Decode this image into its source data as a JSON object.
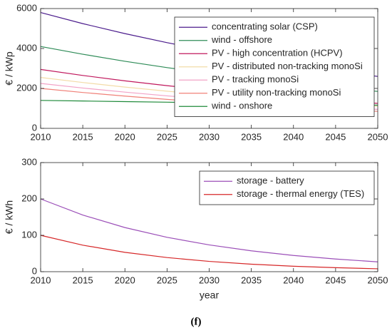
{
  "chart_data": [
    {
      "type": "line",
      "y_label": "€ / kWp",
      "x": [
        2010,
        2015,
        2020,
        2025,
        2030,
        2035,
        2040,
        2045,
        2050
      ],
      "xlim": [
        2010,
        2050
      ],
      "xticks": [
        2010,
        2015,
        2020,
        2025,
        2030,
        2035,
        2040,
        2045,
        2050
      ],
      "ylim": [
        0,
        6000
      ],
      "yticks": [
        0,
        2000,
        4000,
        6000
      ],
      "legend": "upper right",
      "series": [
        {
          "name": "concentrating solar (CSP)",
          "color": "#4b1c8c",
          "values": [
            5800,
            5246,
            4745,
            4292,
            3882,
            3511,
            3176,
            2873,
            2600
          ]
        },
        {
          "name": "wind - offshore",
          "color": "#2e8b57",
          "values": [
            4100,
            3712,
            3360,
            3042,
            2754,
            2493,
            2257,
            2043,
            1850
          ]
        },
        {
          "name": "PV - high concentration (HCPV)",
          "color": "#c0185d",
          "values": [
            2950,
            2650,
            2380,
            2138,
            1920,
            1725,
            1549,
            1392,
            1250
          ]
        },
        {
          "name": "PV - distributed non-tracking monoSi",
          "color": "#f3dca8",
          "values": [
            2550,
            2296,
            2067,
            1861,
            1675,
            1508,
            1358,
            1222,
            1100
          ]
        },
        {
          "name": "PV - tracking monoSi",
          "color": "#f2a2c6",
          "values": [
            2250,
            2020,
            1814,
            1628,
            1462,
            1312,
            1178,
            1058,
            950
          ]
        },
        {
          "name": "PV - utility non-tracking monoSi",
          "color": "#f08078",
          "values": [
            2000,
            1797,
            1615,
            1451,
            1304,
            1171,
            1052,
            946,
            850
          ]
        },
        {
          "name": "wind - onshore",
          "color": "#1f8a3a",
          "values": [
            1400,
            1370,
            1340,
            1310,
            1280,
            1250,
            1220,
            1190,
            1160
          ]
        }
      ]
    },
    {
      "type": "line",
      "y_label": "€ / kWh",
      "x_label": "year",
      "x": [
        2010,
        2015,
        2020,
        2025,
        2030,
        2035,
        2040,
        2045,
        2050
      ],
      "xlim": [
        2010,
        2050
      ],
      "xticks": [
        2010,
        2015,
        2020,
        2025,
        2030,
        2035,
        2040,
        2045,
        2050
      ],
      "ylim": [
        0,
        300
      ],
      "yticks": [
        0,
        100,
        200,
        300
      ],
      "legend": "upper right",
      "series": [
        {
          "name": "storage - battery",
          "color": "#9b4fb8",
          "values": [
            200,
            155.8,
            121.3,
            94.5,
            73.6,
            57.3,
            44.6,
            34.8,
            27
          ]
        },
        {
          "name": "storage - thermal energy (TES)",
          "color": "#d62728",
          "values": [
            100,
            72.9,
            53.2,
            38.8,
            28.3,
            20.6,
            15.0,
            11.0,
            8
          ]
        }
      ]
    }
  ],
  "caption": "(f)"
}
